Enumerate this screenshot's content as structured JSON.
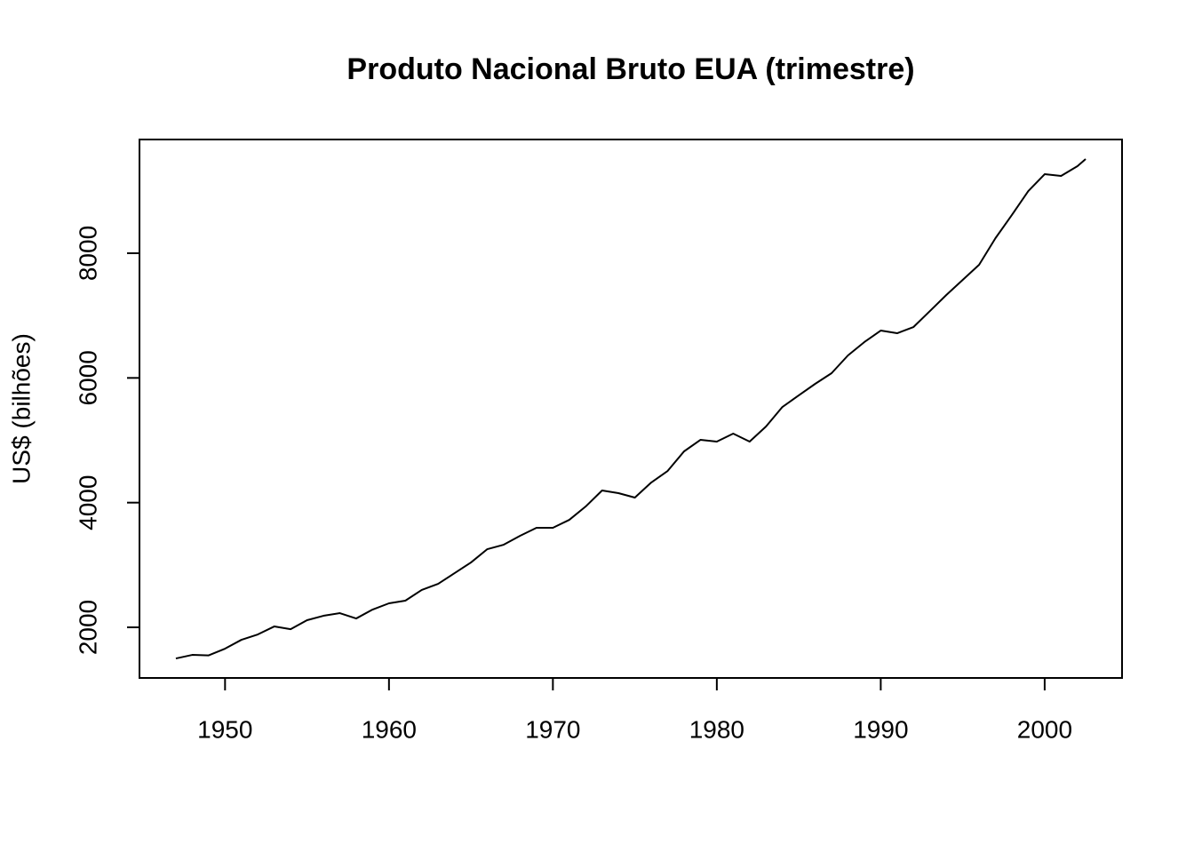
{
  "chart_data": {
    "type": "line",
    "title": "Produto Nacional Bruto EUA (trimestre)",
    "y_label": "US$ (bilhões)",
    "x": [
      1947,
      1948,
      1949,
      1950,
      1951,
      1952,
      1953,
      1954,
      1955,
      1956,
      1957,
      1958,
      1959,
      1960,
      1961,
      1962,
      1963,
      1964,
      1965,
      1966,
      1967,
      1968,
      1969,
      1970,
      1971,
      1972,
      1973,
      1974,
      1975,
      1976,
      1977,
      1978,
      1979,
      1980,
      1981,
      1982,
      1983,
      1984,
      1985,
      1986,
      1987,
      1988,
      1989,
      1990,
      1991,
      1992,
      1993,
      1994,
      1995,
      1996,
      1997,
      1998,
      1999,
      2000,
      2001,
      2002,
      2002.5
    ],
    "values": [
      1501,
      1558,
      1550,
      1658,
      1800,
      1886,
      2014,
      1970,
      2114,
      2185,
      2228,
      2142,
      2285,
      2385,
      2428,
      2600,
      2698,
      2869,
      3040,
      3254,
      3325,
      3468,
      3596,
      3596,
      3724,
      3938,
      4195,
      4152,
      4081,
      4323,
      4508,
      4822,
      5007,
      4979,
      5107,
      4979,
      5221,
      5534,
      5720,
      5905,
      6076,
      6361,
      6575,
      6760,
      6717,
      6817,
      7073,
      7330,
      7572,
      7815,
      8242,
      8613,
      8997,
      9268,
      9240,
      9396,
      9510
    ],
    "color": "#000000",
    "xlim": [
      1944.78,
      2004.72
    ],
    "ylim": [
      1188,
      9824
    ],
    "xticks": [
      1950,
      1960,
      1970,
      1980,
      1990,
      2000
    ],
    "yticks": [
      2000,
      4000,
      6000,
      8000
    ]
  }
}
